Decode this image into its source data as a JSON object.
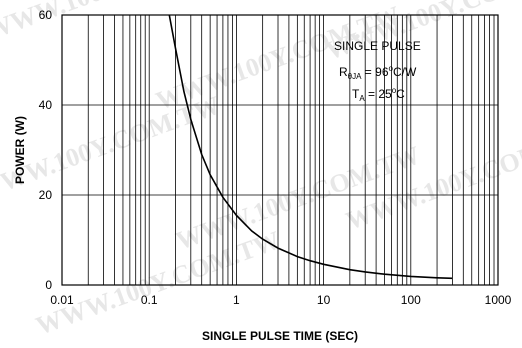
{
  "watermark": {
    "text": "WWW.100Y.COM.TW"
  },
  "chart_data": {
    "type": "line",
    "title": "",
    "xlabel": "SINGLE PULSE TIME (SEC)",
    "ylabel": "POWER (W)",
    "x_scale": "log",
    "xlim": [
      0.01,
      1000
    ],
    "ylim": [
      0,
      60
    ],
    "grid": true,
    "x_ticks": [
      "0.01",
      "0.1",
      "1",
      "10",
      "100",
      "1000"
    ],
    "y_ticks": [
      "0",
      "20",
      "40",
      "60"
    ],
    "annotations": {
      "line1": "SINGLE PULSE",
      "line2_prefix": "R",
      "line2_sub": "θJA",
      "line2_eq": " = 96",
      "line2_sup": "o",
      "line2_unit": "C/W",
      "line3_prefix": "T",
      "line3_sub": "A",
      "line3_eq": " = 25",
      "line3_sup": "o",
      "line3_unit": "C"
    },
    "series": [
      {
        "x": [
          0.17,
          0.2,
          0.25,
          0.3,
          0.4,
          0.5,
          0.7,
          1,
          1.5,
          2,
          3,
          5,
          7,
          10,
          20,
          30,
          50,
          100,
          200,
          300
        ],
        "y": [
          60,
          52.7,
          43,
          36.8,
          29,
          24.5,
          19.5,
          15.5,
          12,
          10.2,
          8.2,
          6.3,
          5.4,
          4.6,
          3.4,
          2.9,
          2.4,
          1.9,
          1.6,
          1.5
        ]
      }
    ]
  }
}
